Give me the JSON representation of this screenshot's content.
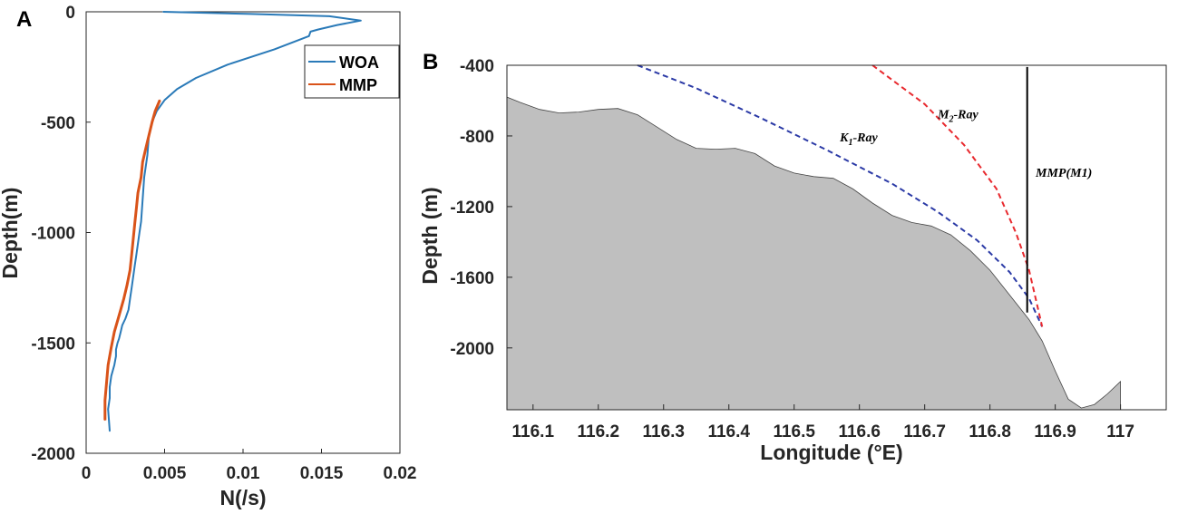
{
  "chart_data": [
    {
      "panel": "A",
      "type": "line",
      "xlabel": "N(/s)",
      "ylabel": "Depth(m)",
      "xlim": [
        0,
        0.02
      ],
      "ylim": [
        -2000,
        0
      ],
      "xticks": [
        0,
        0.005,
        0.01,
        0.015,
        0.02
      ],
      "xtick_labels": [
        "0",
        "0.005",
        "0.01",
        "0.015",
        "0.02"
      ],
      "yticks": [
        0,
        -500,
        -1000,
        -1500,
        -2000
      ],
      "ytick_labels": [
        "0",
        "-500",
        "-1000",
        "-1500",
        "-2000"
      ],
      "legend_position": "top-right",
      "series": [
        {
          "name": "WOA",
          "color": "#2a7ab8",
          "x": [
            0.0049,
            0.0105,
            0.0155,
            0.0175,
            0.016,
            0.0148,
            0.0143,
            0.0142,
            0.012,
            0.009,
            0.007,
            0.0058,
            0.005,
            0.0045,
            0.0042,
            0.004,
            0.0039,
            0.0037,
            0.0036,
            0.0035,
            0.0034,
            0.0033,
            0.0032,
            0.0031,
            0.003,
            0.0029,
            0.0028,
            0.0027,
            0.0025,
            0.0023,
            0.0022,
            0.0021,
            0.002,
            0.0019,
            0.0019,
            0.0018,
            0.0016,
            0.0015,
            0.0015,
            0.0014,
            0.0015
          ],
          "y": [
            0,
            -10,
            -20,
            -40,
            -60,
            -80,
            -90,
            -110,
            -170,
            -240,
            -300,
            -350,
            -400,
            -450,
            -500,
            -560,
            -650,
            -750,
            -850,
            -950,
            -1000,
            -1050,
            -1100,
            -1150,
            -1200,
            -1250,
            -1300,
            -1350,
            -1390,
            -1420,
            -1450,
            -1480,
            -1500,
            -1530,
            -1560,
            -1600,
            -1650,
            -1700,
            -1750,
            -1800,
            -1900
          ]
        },
        {
          "name": "MMP",
          "color": "#d95319",
          "x": [
            0.0047,
            0.0044,
            0.0042,
            0.004,
            0.0038,
            0.0036,
            0.0035,
            0.0033,
            0.0032,
            0.0031,
            0.003,
            0.0029,
            0.0028,
            0.0026,
            0.0024,
            0.0022,
            0.002,
            0.0018,
            0.0016,
            0.0014,
            0.0013,
            0.0012,
            0.0012
          ],
          "y": [
            -400,
            -450,
            -500,
            -560,
            -620,
            -680,
            -750,
            -820,
            -890,
            -960,
            -1030,
            -1100,
            -1170,
            -1240,
            -1300,
            -1350,
            -1400,
            -1450,
            -1520,
            -1600,
            -1680,
            -1760,
            -1850
          ]
        }
      ]
    },
    {
      "panel": "B",
      "type": "area",
      "xlabel": "Longitude (°E)",
      "ylabel": "Depth (m)",
      "xlim": [
        116.06,
        117.07
      ],
      "ylim": [
        -2350,
        -400
      ],
      "xticks": [
        116.1,
        116.2,
        116.3,
        116.4,
        116.5,
        116.6,
        116.7,
        116.8,
        116.9,
        117
      ],
      "xtick_labels": [
        "116.1",
        "116.2",
        "116.3",
        "116.4",
        "116.5",
        "116.6",
        "116.7",
        "116.8",
        "116.9",
        "117"
      ],
      "yticks": [
        -400,
        -800,
        -1200,
        -1600,
        -2000
      ],
      "ytick_labels": [
        "-400",
        "-800",
        "-1200",
        "-1600",
        "-2000"
      ],
      "bathymetry": {
        "color": "#bfbfbf",
        "x": [
          116.06,
          116.08,
          116.11,
          116.14,
          116.17,
          116.2,
          116.23,
          116.26,
          116.29,
          116.32,
          116.35,
          116.38,
          116.41,
          116.44,
          116.47,
          116.5,
          116.53,
          116.56,
          116.59,
          116.62,
          116.65,
          116.68,
          116.71,
          116.74,
          116.77,
          116.8,
          116.83,
          116.86,
          116.88,
          116.9,
          116.92,
          116.94,
          116.96,
          116.98,
          117.0
        ],
        "y": [
          -580,
          -610,
          -650,
          -670,
          -665,
          -650,
          -645,
          -680,
          -750,
          -820,
          -870,
          -875,
          -870,
          -900,
          -970,
          -1010,
          -1030,
          -1040,
          -1100,
          -1180,
          -1250,
          -1290,
          -1310,
          -1360,
          -1450,
          -1560,
          -1700,
          -1840,
          -1960,
          -2130,
          -2290,
          -2340,
          -2320,
          -2260,
          -2190
        ]
      },
      "series": [
        {
          "name": "K1-Ray",
          "color": "#2b3aa6",
          "style": "dashed",
          "x": [
            116.26,
            116.35,
            116.45,
            116.55,
            116.65,
            116.72,
            116.78,
            116.83,
            116.86,
            116.88
          ],
          "y": [
            -400,
            -530,
            -700,
            -880,
            -1070,
            -1230,
            -1390,
            -1570,
            -1720,
            -1880
          ]
        },
        {
          "name": "M2-Ray",
          "color": "#e8292e",
          "style": "dashed",
          "x": [
            116.62,
            116.7,
            116.76,
            116.81,
            116.84,
            116.86,
            116.87,
            116.88
          ],
          "y": [
            -400,
            -620,
            -850,
            -1100,
            -1350,
            -1560,
            -1720,
            -1880
          ]
        },
        {
          "name": "MMP(M1)",
          "color": "#000000",
          "style": "solid",
          "x": [
            116.857,
            116.857
          ],
          "y": [
            -410,
            -1800
          ]
        }
      ],
      "annotations": [
        {
          "text": "K",
          "sub": "1",
          "rest": "-Ray",
          "x": 116.57,
          "y": -830
        },
        {
          "text": "M",
          "sub": "2",
          "rest": "-Ray",
          "x": 116.72,
          "y": -700
        },
        {
          "text": "MMP(M1)",
          "sub": "",
          "rest": "",
          "x": 116.87,
          "y": -1030
        }
      ]
    }
  ],
  "panel_labels": {
    "a": "A",
    "b": "B"
  }
}
